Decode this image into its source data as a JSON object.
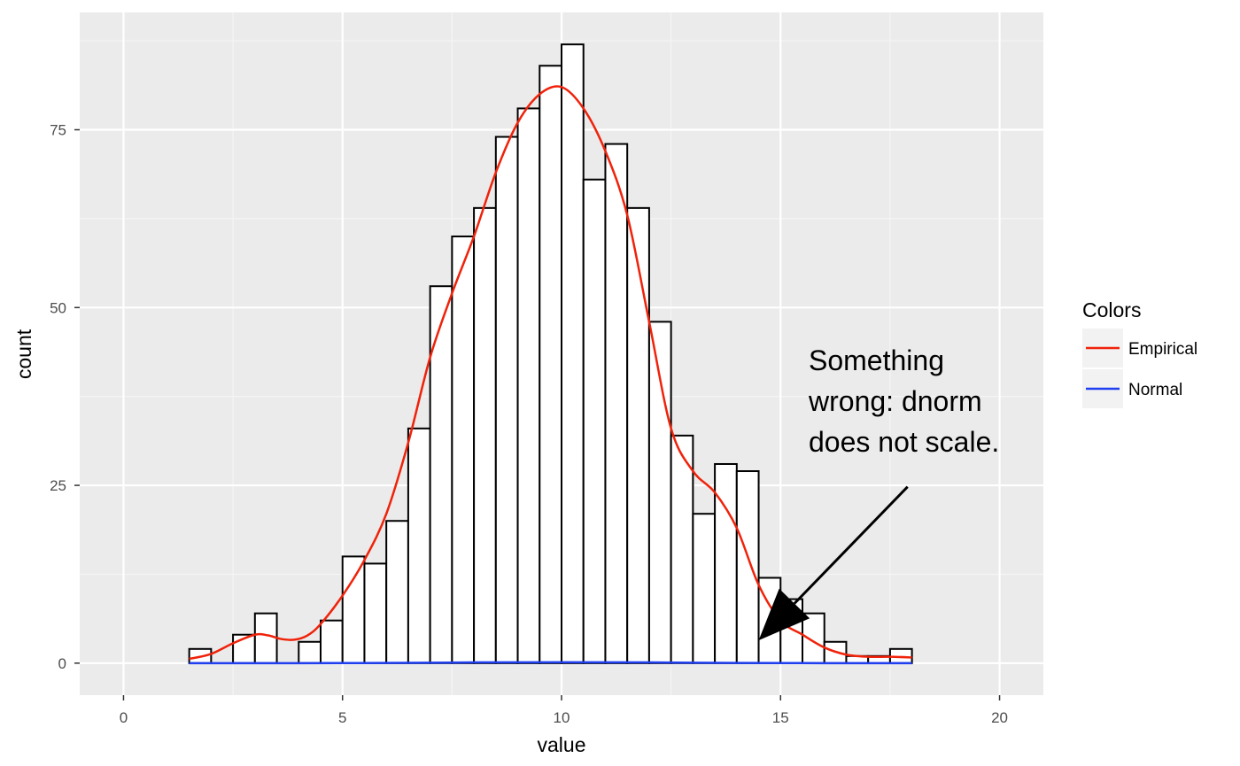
{
  "chart_data": {
    "type": "bar",
    "xlabel": "value",
    "ylabel": "count",
    "xlim": [
      -1,
      21
    ],
    "ylim": [
      -4.5,
      91.5
    ],
    "xticks": [
      "0",
      "5",
      "10",
      "15",
      "20"
    ],
    "yticks": [
      "0",
      "25",
      "50",
      "75"
    ],
    "grid": true,
    "bin_width": 0.5,
    "bins": [
      {
        "x0": 0.0,
        "count": 0
      },
      {
        "x0": 0.5,
        "count": 0
      },
      {
        "x0": 1.0,
        "count": 0
      },
      {
        "x0": 1.5,
        "count": 2
      },
      {
        "x0": 2.0,
        "count": 0
      },
      {
        "x0": 2.5,
        "count": 4
      },
      {
        "x0": 3.0,
        "count": 7
      },
      {
        "x0": 3.5,
        "count": 0
      },
      {
        "x0": 4.0,
        "count": 3
      },
      {
        "x0": 4.5,
        "count": 6
      },
      {
        "x0": 5.0,
        "count": 15
      },
      {
        "x0": 5.5,
        "count": 14
      },
      {
        "x0": 6.0,
        "count": 20
      },
      {
        "x0": 6.5,
        "count": 33
      },
      {
        "x0": 7.0,
        "count": 53
      },
      {
        "x0": 7.5,
        "count": 60
      },
      {
        "x0": 8.0,
        "count": 64
      },
      {
        "x0": 8.5,
        "count": 74
      },
      {
        "x0": 9.0,
        "count": 78
      },
      {
        "x0": 9.5,
        "count": 84
      },
      {
        "x0": 10.0,
        "count": 87
      },
      {
        "x0": 10.5,
        "count": 68
      },
      {
        "x0": 11.0,
        "count": 73
      },
      {
        "x0": 11.5,
        "count": 64
      },
      {
        "x0": 12.0,
        "count": 48
      },
      {
        "x0": 12.5,
        "count": 32
      },
      {
        "x0": 13.0,
        "count": 21
      },
      {
        "x0": 13.5,
        "count": 28
      },
      {
        "x0": 14.0,
        "count": 27
      },
      {
        "x0": 14.5,
        "count": 12
      },
      {
        "x0": 15.0,
        "count": 9
      },
      {
        "x0": 15.5,
        "count": 7
      },
      {
        "x0": 16.0,
        "count": 3
      },
      {
        "x0": 16.5,
        "count": 1
      },
      {
        "x0": 17.0,
        "count": 1
      },
      {
        "x0": 17.5,
        "count": 2
      },
      {
        "x0": 18.0,
        "count": 0
      },
      {
        "x0": 18.5,
        "count": 0
      },
      {
        "x0": 19.0,
        "count": 0
      },
      {
        "x0": 19.5,
        "count": 0
      }
    ],
    "series": [
      {
        "name": "Empirical",
        "color": "#f0220a",
        "x": [
          1.5,
          2.0,
          2.5,
          3.0,
          3.3,
          3.6,
          3.9,
          4.2,
          4.5,
          5.0,
          5.5,
          6.0,
          6.5,
          7.0,
          7.5,
          8.0,
          8.5,
          9.0,
          9.5,
          10.0,
          10.5,
          11.0,
          11.5,
          12.0,
          12.5,
          13.0,
          13.5,
          14.0,
          14.5,
          15.0,
          15.5,
          16.0,
          16.5,
          17.0,
          17.5,
          18.0
        ],
        "y": [
          0.6,
          1.3,
          2.8,
          4.0,
          3.9,
          3.4,
          3.3,
          3.9,
          5.5,
          9.5,
          14.5,
          21,
          31,
          43,
          52,
          60,
          69,
          76,
          80,
          81,
          78,
          72,
          63,
          48,
          33,
          27,
          24,
          19,
          11,
          6,
          4,
          2.2,
          1.2,
          0.9,
          0.9,
          0.8
        ]
      },
      {
        "name": "Normal",
        "color": "#1f3ff0",
        "x": [
          1.5,
          4,
          6,
          8,
          10,
          12,
          14,
          16,
          18
        ],
        "y": [
          0.0,
          0.005,
          0.03,
          0.1,
          0.13,
          0.1,
          0.03,
          0.005,
          0.0
        ]
      }
    ],
    "legend": {
      "title": "Colors",
      "position": "right",
      "entries": [
        {
          "label": "Empirical",
          "color": "#f0220a"
        },
        {
          "label": "Normal",
          "color": "#1f3ff0"
        }
      ]
    },
    "annotation": {
      "lines": [
        "Something",
        "wrong: dnorm",
        "does not scale."
      ],
      "arrow_from": {
        "x": 17.9,
        "y": 24.8
      },
      "arrow_to": {
        "x": 14.5,
        "y": 3.2
      }
    }
  }
}
